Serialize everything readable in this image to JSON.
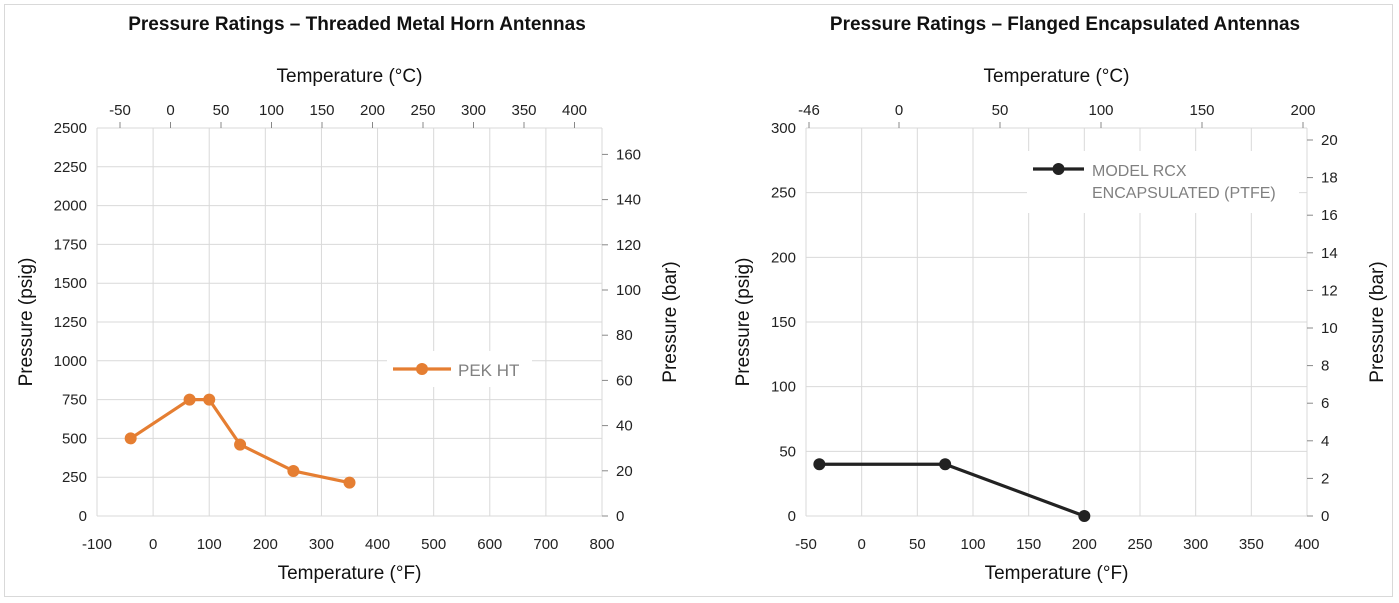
{
  "chart_data": [
    {
      "type": "line",
      "title": "Pressure Ratings – Threaded Metal Horn Antennas",
      "xlabel": "Temperature (°F)",
      "x2label": "Temperature (°C)",
      "ylabel": "Pressure (psig)",
      "y2label": "Pressure (bar)",
      "xlim": [
        -100,
        800
      ],
      "xticks": [
        "-100",
        "0",
        "100",
        "200",
        "300",
        "400",
        "500",
        "600",
        "700",
        "800"
      ],
      "x2ticks": [
        "-50",
        "0",
        "50",
        "100",
        "150",
        "200",
        "250",
        "300",
        "350",
        "400"
      ],
      "ylim": [
        0,
        2500
      ],
      "yticks": [
        "0",
        "250",
        "500",
        "750",
        "1000",
        "1250",
        "1500",
        "1750",
        "2000",
        "2250",
        "2500"
      ],
      "y2ticks": [
        "0",
        "20",
        "40",
        "60",
        "80",
        "100",
        "120",
        "140",
        "160"
      ],
      "grid": true,
      "legend_position": "right-middle",
      "series": [
        {
          "name": "PEK HT",
          "color": "#e57e32",
          "x": [
            -40,
            65,
            100,
            155,
            250,
            350
          ],
          "y": [
            500,
            750,
            750,
            460,
            290,
            215
          ]
        }
      ]
    },
    {
      "type": "line",
      "title": "Pressure Ratings – Flanged Encapsulated Antennas",
      "xlabel": "Temperature (°F)",
      "x2label": "Temperature (°C)",
      "ylabel": "Pressure (psig)",
      "y2label": "Pressure (bar)",
      "xlim": [
        -50,
        400
      ],
      "xticks": [
        "-50",
        "0",
        "50",
        "100",
        "150",
        "200",
        "250",
        "300",
        "350",
        "400"
      ],
      "x2ticks": [
        "-46",
        "0",
        "50",
        "100",
        "150",
        "200"
      ],
      "ylim": [
        0,
        300
      ],
      "yticks": [
        "0",
        "50",
        "100",
        "150",
        "200",
        "250",
        "300"
      ],
      "y2ticks": [
        "0",
        "2",
        "4",
        "6",
        "8",
        "10",
        "12",
        "14",
        "16",
        "18",
        "20"
      ],
      "grid": true,
      "legend_position": "top-right",
      "series": [
        {
          "name": "MODEL RCX ENCAPSULATED (PTFE)",
          "color": "#222222",
          "x": [
            -38,
            75,
            200
          ],
          "y": [
            40,
            40,
            0
          ]
        }
      ]
    }
  ]
}
